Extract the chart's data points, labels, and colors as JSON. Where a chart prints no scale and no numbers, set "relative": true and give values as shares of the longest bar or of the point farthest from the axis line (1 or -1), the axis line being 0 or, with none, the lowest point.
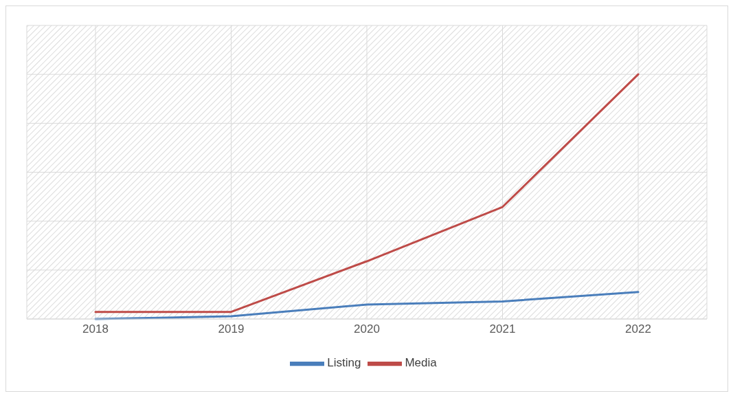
{
  "chart_data": {
    "type": "line",
    "relative": true,
    "categories": [
      "2018",
      "2019",
      "2020",
      "2021",
      "2022"
    ],
    "series": [
      {
        "name": "Listing",
        "color": "#4a7ebb",
        "values": [
          0,
          0.011,
          0.059,
          0.072,
          0.11
        ]
      },
      {
        "name": "Media",
        "color": "#be4b48",
        "values": [
          0.029,
          0.029,
          0.236,
          0.458,
          1
        ]
      }
    ],
    "grid": true,
    "legend": "bottom",
    "marker": "none",
    "line_style": "solid"
  }
}
